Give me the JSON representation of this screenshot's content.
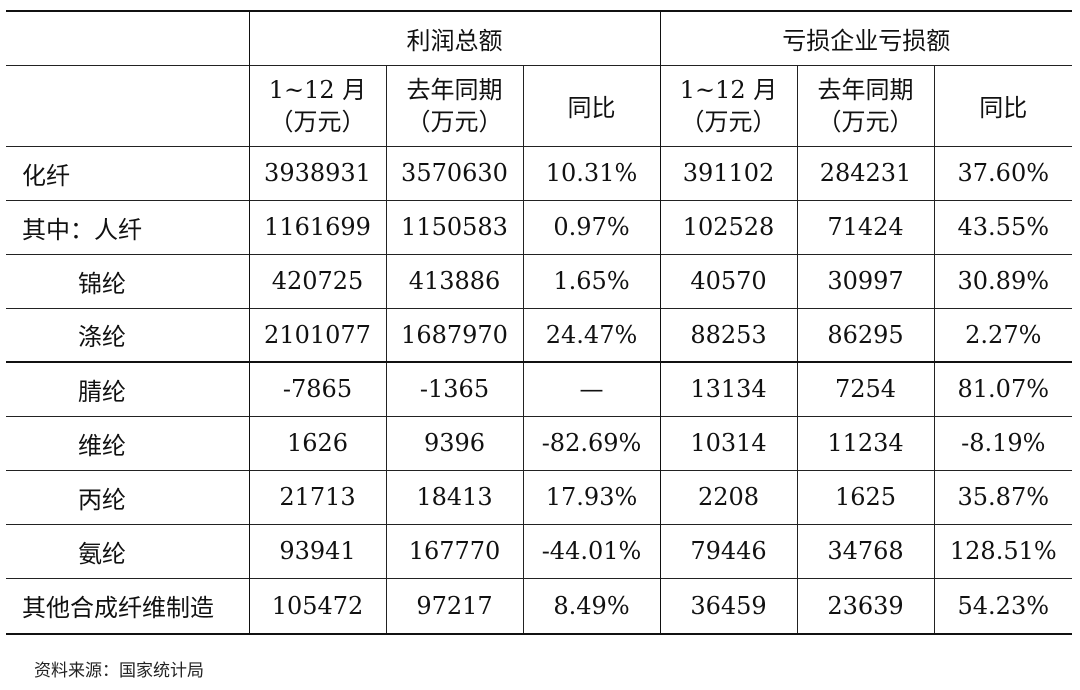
{
  "table": {
    "group_headers": {
      "profit": "利润总额",
      "loss": "亏损企业亏损额"
    },
    "sub_headers": {
      "period": [
        "1~12 月",
        "（万元）"
      ],
      "last_year": [
        "去年同期",
        "（万元）"
      ],
      "yoy": "同比"
    },
    "rows": [
      {
        "name": "化纤",
        "cells": [
          "3938931",
          "3570630",
          "10.31%",
          "391102",
          "284231",
          "37.60%"
        ]
      },
      {
        "name": "其中：人纤",
        "cells": [
          "1161699",
          "1150583",
          "0.97%",
          "102528",
          "71424",
          "43.55%"
        ]
      },
      {
        "name": "锦纶",
        "cells": [
          "420725",
          "413886",
          "1.65%",
          "40570",
          "30997",
          "30.89%"
        ]
      },
      {
        "name": "涤纶",
        "cells": [
          "2101077",
          "1687970",
          "24.47%",
          "88253",
          "86295",
          "2.27%"
        ]
      },
      {
        "name": "腈纶",
        "cells": [
          "-7865",
          "-1365",
          "—",
          "13134",
          "7254",
          "81.07%"
        ]
      },
      {
        "name": "维纶",
        "cells": [
          "1626",
          "9396",
          "-82.69%",
          "10314",
          "11234",
          "-8.19%"
        ]
      },
      {
        "name": "丙纶",
        "cells": [
          "21713",
          "18413",
          "17.93%",
          "2208",
          "1625",
          "35.87%"
        ]
      },
      {
        "name": "氨纶",
        "cells": [
          "93941",
          "167770",
          "-44.01%",
          "79446",
          "34768",
          "128.51%"
        ]
      },
      {
        "name": "其他合成纤维制造",
        "cells": [
          "105472",
          "97217",
          "8.49%",
          "36459",
          "23639",
          "54.23%"
        ]
      }
    ]
  },
  "source": "资料来源：国家统计局"
}
